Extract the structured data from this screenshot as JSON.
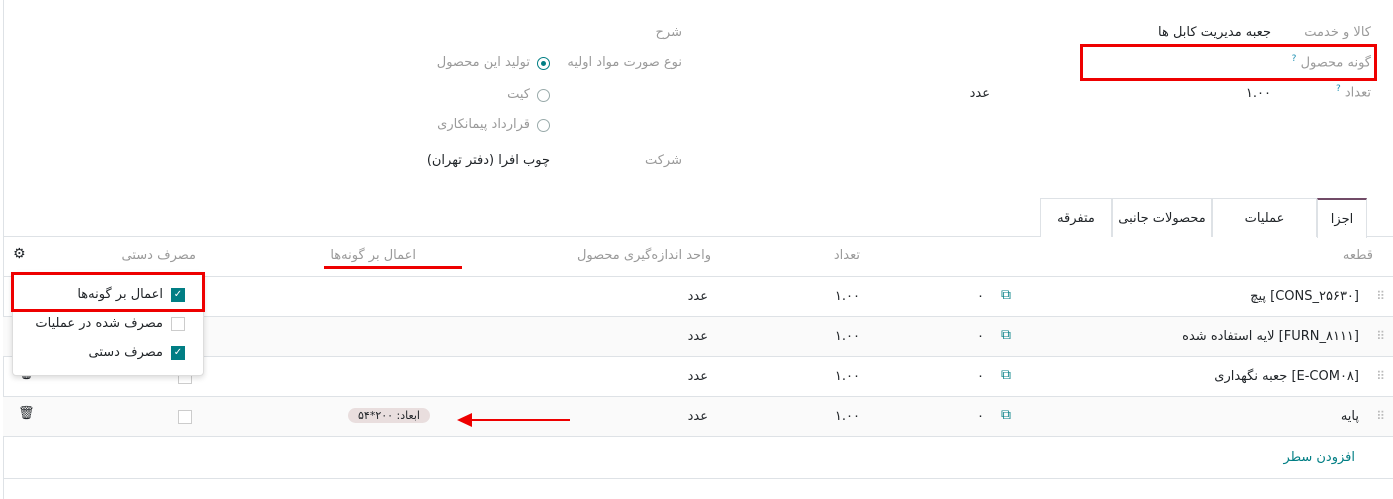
{
  "form": {
    "product_label": "کالا و خدمت",
    "product_value": "جعبه مدیریت کابل ها",
    "variant_label": "گونه محصول",
    "help": "?",
    "qty_label": "تعداد",
    "qty_value": "۱.۰۰",
    "uom_value": "عدد",
    "desc_label": "شرح",
    "bom_type_label": "نوع صورت مواد اولیه",
    "bom_types": [
      {
        "label": "تولید این محصول",
        "selected": true
      },
      {
        "label": "کیت",
        "selected": false
      },
      {
        "label": "قرارداد پیمانکاری",
        "selected": false
      }
    ],
    "company_label": "شرکت",
    "company_value": "چوب افرا (دفتر تهران)"
  },
  "tabs": [
    {
      "label": "اجزا",
      "active": true
    },
    {
      "label": "عملیات"
    },
    {
      "label": "محصولات جانبی"
    },
    {
      "label": "متفرقه"
    }
  ],
  "table": {
    "headers": {
      "component": "قطعه",
      "qty": "تعداد",
      "uom": "واحد اندازه‌گیری محصول",
      "variants": "اعمال بر گونه‌ها",
      "manual": "مصرف دستی"
    },
    "rows": [
      {
        "component": "[CONS_۲۵۶۳۰] پیچ",
        "zero": "۰",
        "qty": "۱.۰۰",
        "uom": "عدد",
        "variant": ""
      },
      {
        "component": "[FURN_۸۱۱۱] لایه استفاده شده",
        "zero": "۰",
        "qty": "۱.۰۰",
        "uom": "عدد",
        "variant": ""
      },
      {
        "component": "[E-COM۰۸] جعبه نگهداری",
        "zero": "۰",
        "qty": "۱.۰۰",
        "uom": "عدد",
        "variant": ""
      },
      {
        "component": "پایه",
        "zero": "۰",
        "qty": "۱.۰۰",
        "uom": "عدد",
        "variant": "ابعاد: ۲۰۰*۵۴"
      }
    ],
    "add_line": "افزودن سطر"
  },
  "column_menu": [
    {
      "label": "اعمال بر گونه‌ها",
      "checked": true
    },
    {
      "label": "مصرف شده در عملیات",
      "checked": false
    },
    {
      "label": "مصرف دستی",
      "checked": true
    }
  ],
  "colors": {
    "accent": "#017e84",
    "highlight": "#e00000",
    "tab_active": "#714b67"
  }
}
